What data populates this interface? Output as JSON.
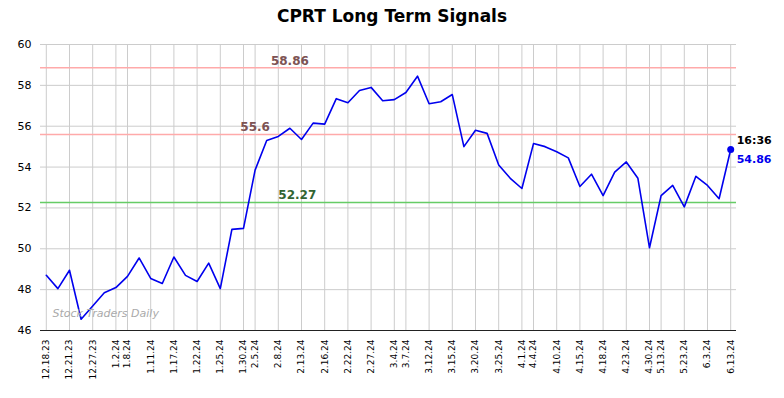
{
  "chart_data": {
    "type": "line",
    "title": "CPRT Long Term Signals",
    "categories": [
      "12.18.23",
      null,
      "12.21.23",
      null,
      "12.27.23",
      null,
      "1.2.24",
      "1.8.24",
      null,
      "1.11.24",
      null,
      "1.17.24",
      null,
      "1.22.24",
      null,
      "1.25.24",
      null,
      "1.30.24",
      "2.5.24",
      null,
      "2.8.24",
      null,
      "2.13.24",
      null,
      "2.16.24",
      null,
      "2.22.24",
      null,
      "2.27.24",
      null,
      "3.4.24",
      "3.7.24",
      null,
      "3.12.24",
      null,
      "3.15.24",
      null,
      "3.20.24",
      null,
      "3.25.24",
      null,
      "4.1.24",
      "4.4.24",
      null,
      "4.10.24",
      null,
      "4.15.24",
      null,
      "4.18.24",
      null,
      "4.23.24",
      null,
      "4.30.24",
      "5.13.24",
      null,
      "5.23.24",
      null,
      "6.3.24",
      null,
      "6.13.24"
    ],
    "values": [
      48.7,
      48.05,
      48.95,
      46.55,
      47.2,
      47.85,
      48.1,
      48.65,
      49.55,
      48.55,
      48.3,
      49.6,
      48.7,
      48.4,
      49.3,
      48.05,
      50.95,
      51.0,
      53.85,
      55.3,
      55.5,
      55.9,
      55.35,
      56.15,
      56.1,
      57.35,
      57.15,
      57.75,
      57.9,
      57.25,
      57.3,
      57.65,
      58.45,
      57.1,
      57.2,
      57.55,
      55.0,
      55.8,
      55.65,
      54.1,
      53.45,
      52.95,
      55.15,
      55.0,
      54.75,
      54.45,
      53.05,
      53.65,
      52.6,
      53.75,
      54.25,
      53.45,
      50.05,
      52.6,
      53.1,
      52.05,
      53.55,
      53.1,
      52.45,
      54.86
    ],
    "color": "#0000ee",
    "ylim": [
      46,
      60
    ],
    "yticks": [
      46,
      48,
      50,
      52,
      54,
      56,
      58,
      60
    ],
    "grid": true,
    "hlines": [
      {
        "value": 52.27,
        "label": "52.27",
        "color": "#66cc66"
      },
      {
        "value": 55.6,
        "label": "55.6",
        "color": "#ffaaaa"
      },
      {
        "value": 58.86,
        "label": "58.86",
        "color": "#ffaaaa"
      }
    ],
    "annotations": [
      {
        "text": "16:36",
        "x": 59,
        "y": 54.86
      },
      {
        "text": "54.86",
        "x": 59,
        "y": 54.86
      },
      {
        "text": "Stock Traders Daily"
      }
    ]
  }
}
